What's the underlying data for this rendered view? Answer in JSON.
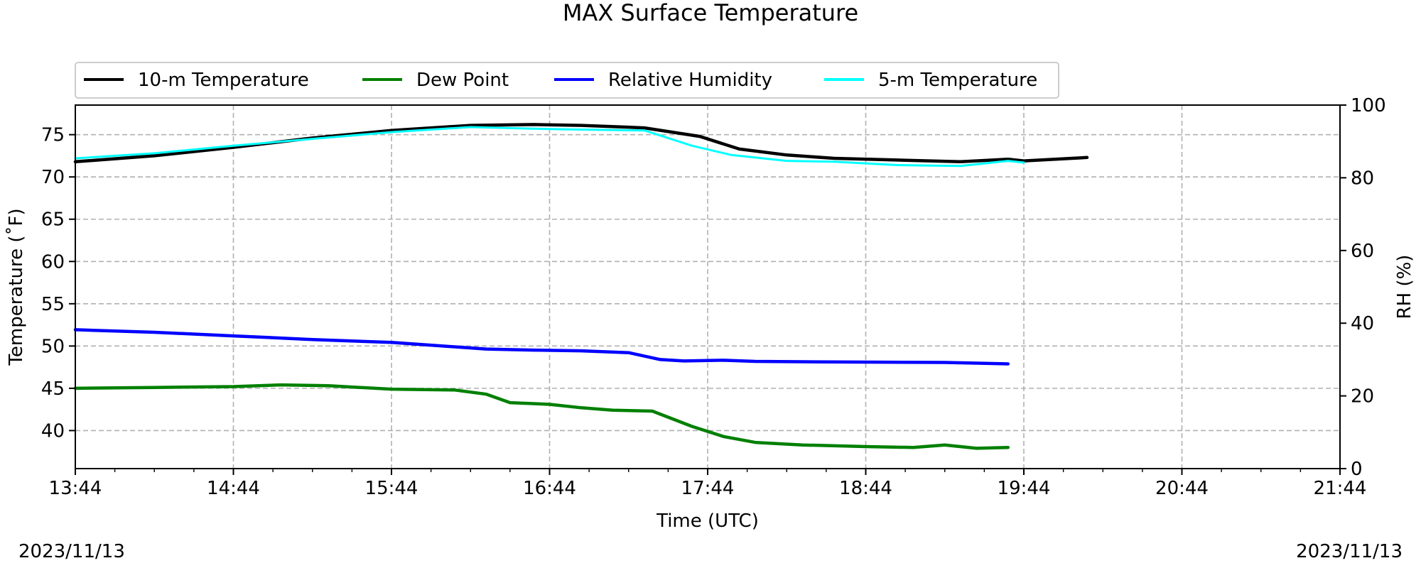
{
  "footer": {
    "date_left": "2023/11/13",
    "date_right": "2023/11/13"
  },
  "chart_data": {
    "type": "line",
    "title": "MAX Surface Temperature",
    "xlabel": "Time (UTC)",
    "ylabel_left": "Temperature (˚F)",
    "ylabel_right": "RH (%)",
    "x_ticks": [
      "13:44",
      "14:44",
      "15:44",
      "16:44",
      "17:44",
      "18:44",
      "19:44",
      "20:44",
      "21:44"
    ],
    "x_unit": "hours since 13:44 UTC on the shared time axis",
    "xlim": [
      0,
      8
    ],
    "ylim_left": [
      35.5,
      78.5
    ],
    "ylim_right": [
      0,
      100
    ],
    "y_ticks_left": [
      40,
      45,
      50,
      55,
      60,
      65,
      70,
      75
    ],
    "y_ticks_right": [
      0,
      20,
      40,
      60,
      80,
      100
    ],
    "grid": true,
    "legend_position": "top-left, above plot",
    "series": [
      {
        "name": "10-m Temperature",
        "axis": "left",
        "color": "#000000",
        "x": [
          0,
          0.5,
          1,
          1.5,
          2,
          2.5,
          2.9,
          3.2,
          3.6,
          3.95,
          4.2,
          4.5,
          4.8,
          5.2,
          5.6,
          6.0,
          6.4,
          5.9
        ],
        "y": [
          71.8,
          72.5,
          73.5,
          74.6,
          75.5,
          76.1,
          76.2,
          76.1,
          75.8,
          74.8,
          73.3,
          72.6,
          72.2,
          72.0,
          71.8,
          71.9,
          72.3,
          72.1
        ],
        "order": [
          0,
          1,
          2,
          3,
          4,
          5,
          6,
          7,
          8,
          9,
          10,
          11,
          12,
          13,
          14,
          15,
          17,
          16
        ]
      },
      {
        "name": "Dew Point",
        "axis": "left",
        "color": "#008000",
        "x": [
          0,
          0.5,
          1,
          1.3,
          1.6,
          2,
          2.4,
          2.6,
          2.75,
          3.0,
          3.2,
          3.4,
          3.65,
          3.9,
          4.1,
          4.3,
          4.6,
          5.0,
          5.3,
          5.5,
          5.7,
          5.9
        ],
        "y": [
          45.0,
          45.1,
          45.2,
          45.4,
          45.3,
          44.9,
          44.8,
          44.3,
          43.3,
          43.1,
          42.7,
          42.4,
          42.3,
          40.5,
          39.3,
          38.6,
          38.3,
          38.1,
          38.0,
          38.3,
          37.9,
          38.0
        ]
      },
      {
        "name": "Relative Humidity",
        "axis": "right",
        "color": "#0000ff",
        "x": [
          0,
          0.5,
          1,
          1.5,
          2,
          2.4,
          2.6,
          2.9,
          3.2,
          3.5,
          3.7,
          3.85,
          4.1,
          4.3,
          4.6,
          5.0,
          5.5,
          5.9
        ],
        "y": [
          38.2,
          37.5,
          36.5,
          35.5,
          34.7,
          33.5,
          32.9,
          32.6,
          32.4,
          31.9,
          30.0,
          29.6,
          29.8,
          29.5,
          29.4,
          29.3,
          29.2,
          28.8
        ]
      },
      {
        "name": "5-m Temperature",
        "axis": "left",
        "color": "#00ffff",
        "x": [
          0,
          0.5,
          1,
          1.5,
          2,
          2.5,
          2.9,
          3.2,
          3.6,
          3.9,
          4.15,
          4.5,
          4.8,
          5.2,
          5.6,
          6.0,
          5.9
        ],
        "y": [
          72.2,
          72.8,
          73.7,
          74.5,
          75.3,
          75.9,
          75.7,
          75.6,
          75.5,
          73.7,
          72.6,
          71.9,
          71.8,
          71.4,
          71.3,
          71.7,
          71.9
        ]
      }
    ]
  }
}
